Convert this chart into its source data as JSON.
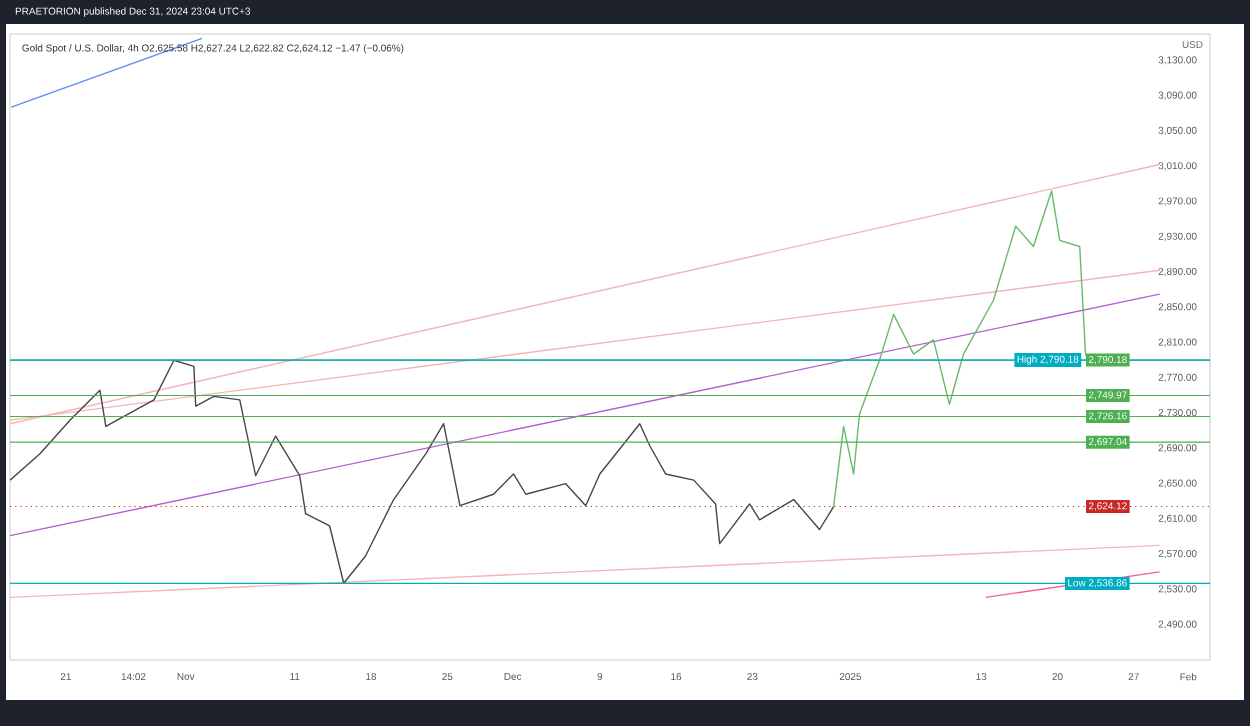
{
  "chart_data": {
    "type": "line",
    "title": "Gold Spot / U.S. Dollar, 4h  O2,625.58 H2,627.24 L2,622.82 C2,624.12 −1.47 (−0.06%)",
    "ylabel": "USD",
    "annotations": [
      "PRAETORION published Dec 31, 2024 23:04 UTC+3"
    ],
    "xlim": [
      "2024-10-15T21:00",
      "2025-02-03T00:00"
    ],
    "xticks": [
      {
        "value": "2024-10-21",
        "label": "21"
      },
      {
        "value": "2024-10-27T05:00",
        "label": "14:02"
      },
      {
        "value": "2024-11-01",
        "label": "Nov"
      },
      {
        "value": "2024-11-11",
        "label": "11"
      },
      {
        "value": "2024-11-18",
        "label": "18"
      },
      {
        "value": "2024-11-25",
        "label": "25"
      },
      {
        "value": "2024-12-01",
        "label": "Dec"
      },
      {
        "value": "2024-12-09",
        "label": "9"
      },
      {
        "value": "2024-12-16",
        "label": "16"
      },
      {
        "value": "2024-12-23",
        "label": "23"
      },
      {
        "value": "2025-01-01",
        "label": "2025"
      },
      {
        "value": "2025-01-13",
        "label": "13"
      },
      {
        "value": "2025-01-20",
        "label": "20"
      },
      {
        "value": "2025-01-27",
        "label": "27"
      },
      {
        "value": "2025-02-01",
        "label": "Feb"
      }
    ],
    "ylim": [
      2450,
      3160
    ],
    "yticks": [
      {
        "value": 2490,
        "label": "2,490.00"
      },
      {
        "value": 2530,
        "label": "2,530.00"
      },
      {
        "value": 2570,
        "label": "2,570.00"
      },
      {
        "value": 2610,
        "label": "2,610.00"
      },
      {
        "value": 2650,
        "label": "2,650.00"
      },
      {
        "value": 2690,
        "label": "2,690.00"
      },
      {
        "value": 2730,
        "label": "2,730.00"
      },
      {
        "value": 2770,
        "label": "2,770.00"
      },
      {
        "value": 2810,
        "label": "2,810.00"
      },
      {
        "value": 2850,
        "label": "2,850.00"
      },
      {
        "value": 2890,
        "label": "2,890.00"
      },
      {
        "value": 2930,
        "label": "2,930.00"
      },
      {
        "value": 2970,
        "label": "2,970.00"
      },
      {
        "value": 3010,
        "label": "3,010.00"
      },
      {
        "value": 3050,
        "label": "3,050.00"
      },
      {
        "value": 3090,
        "label": "3,090.00"
      },
      {
        "value": 3130,
        "label": "3,130.00"
      }
    ],
    "series": [
      {
        "color": "#b45fd0",
        "x": [
          "2024-10-15T21:00",
          "2025-01-29T09:00"
        ],
        "values": [
          2591,
          2865
        ]
      },
      {
        "color": "#f5b5b5",
        "x": [
          "2024-10-15T21:00",
          "2025-01-29T09:00"
        ],
        "values": [
          2718,
          3012
        ]
      },
      {
        "color": "#f5b5b5",
        "x": [
          "2024-10-15T21:00",
          "2025-01-29T09:00"
        ],
        "values": [
          2722,
          2892
        ]
      },
      {
        "color": "#f5b5b5",
        "x": [
          "2024-10-15T21:00",
          "2025-01-29T09:00"
        ],
        "values": [
          2521,
          2580
        ]
      },
      {
        "color": "#f06292",
        "x": [
          "2025-01-13T10:00",
          "2025-01-29T09:00"
        ],
        "values": [
          2521,
          2550
        ]
      },
      {
        "color": "#5b8def",
        "x": [
          "2024-10-16T00:00",
          "2024-11-02T12:00"
        ],
        "values": [
          3077,
          3155
        ]
      },
      {
        "color": "#434651",
        "x": [
          "2024-10-15T21:00",
          "2024-10-18T15:00",
          "2024-10-21T09:00",
          "2024-10-24T03:00",
          "2024-10-24T16:00",
          "2024-10-29T02:00",
          "2024-10-30T22:00",
          "2024-11-01T18:00",
          "2024-11-01T22:00",
          "2024-11-03T14:00",
          "2024-11-05T23:00",
          "2024-11-07T10:00",
          "2024-11-09T06:00",
          "2024-11-11T11:00",
          "2024-11-12T00:00",
          "2024-11-14T05:00",
          "2024-11-15T12:00",
          "2024-11-17T12:00",
          "2024-11-20T02:00",
          "2024-11-23T01:00",
          "2024-11-24T16:00",
          "2024-11-26T04:00",
          "2024-11-29T06:00",
          "2024-12-01T02:00",
          "2024-12-02T05:00",
          "2024-12-05T21:00",
          "2024-12-07T17:00",
          "2024-12-09T00:00",
          "2024-12-12T16:00",
          "2024-12-13T14:00",
          "2024-12-15T01:00",
          "2024-12-17T15:00",
          "2024-12-19T15:00",
          "2024-12-20T00:00",
          "2024-12-22T18:00",
          "2024-12-23T16:00",
          "2024-12-26T19:00",
          "2024-12-29T04:00",
          "2024-12-30T11:00"
        ],
        "values": [
          2654,
          2684,
          2722,
          2756,
          2715,
          2745,
          2790,
          2783,
          2738,
          2749,
          2745,
          2659,
          2704,
          2659,
          2616,
          2602,
          2537,
          2568,
          2632,
          2684,
          2718,
          2625,
          2638,
          2661,
          2638,
          2650,
          2625,
          2661,
          2718,
          2693,
          2661,
          2654,
          2627,
          2582,
          2627,
          2609,
          2632,
          2598,
          2624
        ]
      },
      {
        "color": "#66bb6a",
        "x": [
          "2024-12-30T11:00",
          "2024-12-31T09:00",
          "2025-01-01T07:00",
          "2025-01-01T20:00",
          "2025-01-03T16:00",
          "2025-01-04T23:00",
          "2025-01-06T19:00",
          "2025-01-08T15:00",
          "2025-01-10T02:00",
          "2025-01-11T09:00",
          "2025-01-14T03:00",
          "2025-01-16T04:00",
          "2025-01-17T19:00",
          "2025-01-19T11:00",
          "2025-01-20T05:00",
          "2025-01-22T01:00",
          "2025-01-22T14:00"
        ],
        "values": [
          2624,
          2715,
          2661,
          2729,
          2790,
          2842,
          2797,
          2813,
          2740,
          2797,
          2858,
          2942,
          2919,
          2982,
          2926,
          2919,
          2795
        ]
      }
    ],
    "ref_lines": [
      {
        "axis": "y",
        "value": 2790.18,
        "label": "2,790.18",
        "color": "#4caf50"
      },
      {
        "axis": "y",
        "value": 2790.18,
        "label": "High 2,790.18",
        "color": "#00acc1"
      },
      {
        "axis": "y",
        "value": 2749.97,
        "label": "2,749.97",
        "color": "#4caf50"
      },
      {
        "axis": "y",
        "value": 2726.16,
        "label": "2,726.16",
        "color": "#4caf50"
      },
      {
        "axis": "y",
        "value": 2697.04,
        "label": "2,697.04",
        "color": "#4caf50"
      },
      {
        "axis": "y",
        "value": 2624.12,
        "label": "2,624.12",
        "color": "#c62828",
        "line_style": "dotted"
      },
      {
        "axis": "y",
        "value": 2536.86,
        "label": "Low 2,536.86",
        "color": "#00acc1"
      }
    ]
  }
}
